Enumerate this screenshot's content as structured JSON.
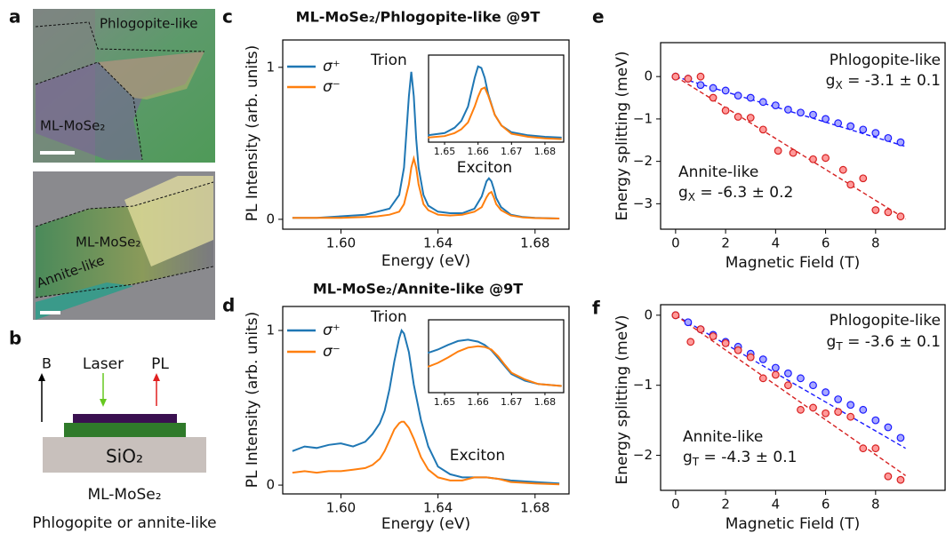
{
  "figure": {
    "panel_labels": [
      "a",
      "b",
      "c",
      "d",
      "e",
      "f"
    ],
    "image_top": {
      "substrate": "Phlogopite-like",
      "flake": "ML-MoSe₂"
    },
    "image_bottom": {
      "flake": "ML-MoSe₂",
      "substrate": "Annite-like"
    },
    "schematic": {
      "field": "B",
      "laser": "Laser",
      "pl": "PL",
      "substrate": "SiO₂",
      "flake": "ML-MoSe₂",
      "layer": "Phlogopite or annite-like"
    }
  },
  "chart_data": [
    {
      "type": "line",
      "title": "ML-MoSe₂/Phlogopite-like @9T",
      "xlabel": "Energy (eV)",
      "ylabel": "PL Intensity (arb. units)",
      "xlim": [
        1.576,
        1.694
      ],
      "ylim": [
        -0.065,
        1.18
      ],
      "xticks": [
        {
          "value": 1.6,
          "label": "1.60"
        },
        1.64,
        1.68
      ],
      "yticks": [
        0,
        1
      ],
      "x": [
        1.58,
        1.59,
        1.6,
        1.61,
        1.615,
        1.62,
        1.624,
        1.626,
        1.628,
        1.629,
        1.63,
        1.631,
        1.632,
        1.634,
        1.636,
        1.64,
        1.645,
        1.65,
        1.655,
        1.658,
        1.66,
        1.661,
        1.662,
        1.663,
        1.664,
        1.666,
        1.67,
        1.675,
        1.68,
        1.69
      ],
      "series": [
        {
          "name": "σ⁺",
          "color": "#1f77b4",
          "values": [
            0.01,
            0.01,
            0.02,
            0.03,
            0.05,
            0.07,
            0.16,
            0.34,
            0.81,
            0.97,
            0.81,
            0.53,
            0.34,
            0.16,
            0.09,
            0.05,
            0.04,
            0.04,
            0.07,
            0.15,
            0.25,
            0.27,
            0.25,
            0.2,
            0.14,
            0.08,
            0.03,
            0.015,
            0.01,
            0.005
          ]
        },
        {
          "name": "σ⁻",
          "color": "#ff7f0e",
          "values": [
            0.01,
            0.01,
            0.01,
            0.015,
            0.02,
            0.03,
            0.05,
            0.1,
            0.23,
            0.34,
            0.4,
            0.34,
            0.23,
            0.1,
            0.06,
            0.03,
            0.025,
            0.03,
            0.05,
            0.08,
            0.145,
            0.17,
            0.18,
            0.145,
            0.1,
            0.06,
            0.025,
            0.012,
            0.008,
            0.005
          ]
        }
      ],
      "annotations": [
        {
          "text": "Trion"
        },
        {
          "text": "Exciton"
        }
      ],
      "inset": {
        "xlim": [
          1.6452,
          1.6856
        ],
        "ylim": [
          0,
          1.15
        ],
        "xticks": [
          1.65,
          1.66,
          1.67,
          1.68
        ],
        "x": [
          1.645,
          1.65,
          1.653,
          1.655,
          1.657,
          1.659,
          1.66,
          1.661,
          1.662,
          1.663,
          1.665,
          1.667,
          1.67,
          1.675,
          1.68,
          1.685
        ],
        "series": [
          {
            "color": "#1f77b4",
            "values": [
              0.09,
              0.12,
              0.19,
              0.28,
              0.47,
              0.85,
              1.0,
              0.98,
              0.85,
              0.64,
              0.36,
              0.22,
              0.13,
              0.09,
              0.07,
              0.06
            ]
          },
          {
            "color": "#ff7f0e",
            "values": [
              0.06,
              0.08,
              0.12,
              0.17,
              0.26,
              0.47,
              0.6,
              0.7,
              0.72,
              0.62,
              0.36,
              0.22,
              0.11,
              0.07,
              0.05,
              0.04
            ]
          }
        ]
      }
    },
    {
      "type": "line",
      "title": "ML-MoSe₂/Annite-like @9T",
      "xlabel": "Energy (eV)",
      "ylabel": "PL Intensity (arb. units)",
      "xlim": [
        1.576,
        1.694
      ],
      "ylim": [
        -0.057,
        1.155
      ],
      "xticks": [
        {
          "value": 1.6,
          "label": "1.60"
        },
        1.64,
        1.68
      ],
      "yticks": [
        0,
        1
      ],
      "x": [
        1.58,
        1.585,
        1.59,
        1.595,
        1.6,
        1.605,
        1.61,
        1.613,
        1.616,
        1.618,
        1.62,
        1.622,
        1.624,
        1.625,
        1.626,
        1.628,
        1.63,
        1.633,
        1.636,
        1.64,
        1.645,
        1.65,
        1.655,
        1.66,
        1.665,
        1.67,
        1.68,
        1.69
      ],
      "series": [
        {
          "name": "σ⁺",
          "color": "#1f77b4",
          "values": [
            0.22,
            0.25,
            0.24,
            0.26,
            0.27,
            0.25,
            0.28,
            0.33,
            0.4,
            0.48,
            0.62,
            0.8,
            0.95,
            1.0,
            0.98,
            0.86,
            0.65,
            0.42,
            0.25,
            0.12,
            0.07,
            0.05,
            0.05,
            0.05,
            0.04,
            0.03,
            0.02,
            0.01
          ]
        },
        {
          "name": "σ⁻",
          "color": "#ff7f0e",
          "values": [
            0.08,
            0.09,
            0.08,
            0.09,
            0.09,
            0.1,
            0.11,
            0.13,
            0.17,
            0.22,
            0.29,
            0.36,
            0.4,
            0.41,
            0.41,
            0.37,
            0.3,
            0.18,
            0.1,
            0.05,
            0.03,
            0.03,
            0.05,
            0.05,
            0.04,
            0.02,
            0.01,
            0.005
          ]
        }
      ],
      "annotations": [
        {
          "text": "Trion"
        },
        {
          "text": "Exciton"
        }
      ],
      "inset": {
        "xlim": [
          1.6452,
          1.6856
        ],
        "ylim": [
          0,
          1.1
        ],
        "xticks": [
          1.65,
          1.66,
          1.67,
          1.68
        ],
        "x": [
          1.645,
          1.648,
          1.651,
          1.654,
          1.657,
          1.66,
          1.662,
          1.664,
          1.666,
          1.668,
          1.67,
          1.674,
          1.678,
          1.685
        ],
        "series": [
          {
            "color": "#1f77b4",
            "values": [
              0.6,
              0.65,
              0.72,
              0.78,
              0.8,
              0.77,
              0.72,
              0.64,
              0.52,
              0.4,
              0.28,
              0.18,
              0.13,
              0.1
            ]
          },
          {
            "color": "#ff7f0e",
            "values": [
              0.39,
              0.45,
              0.53,
              0.62,
              0.68,
              0.7,
              0.69,
              0.65,
              0.55,
              0.42,
              0.3,
              0.2,
              0.13,
              0.1
            ]
          }
        ]
      }
    },
    {
      "type": "scatter",
      "xlabel": "Magnetic Field (T)",
      "ylabel": "Energy splitting (meV)",
      "xlim": [
        -0.6,
        10.78
      ],
      "ylim": [
        -3.6,
        0.8
      ],
      "xticks": [
        0,
        2,
        4,
        6,
        8
      ],
      "yticks": [
        0,
        {
          "value": -1,
          "label": "−1"
        },
        {
          "value": -2,
          "label": "−2"
        },
        {
          "value": -3,
          "label": "−3"
        }
      ],
      "series": [
        {
          "color": "#1a1aff",
          "fill": "#a8a8ff",
          "x": [
            0,
            0.5,
            1,
            1.5,
            2,
            2.5,
            3,
            3.5,
            4,
            4.5,
            5,
            5.5,
            6,
            6.5,
            7,
            7.5,
            8,
            8.5,
            9
          ],
          "values": [
            0,
            -0.05,
            -0.2,
            -0.27,
            -0.33,
            -0.45,
            -0.5,
            -0.6,
            -0.68,
            -0.78,
            -0.85,
            -0.9,
            -1.0,
            -1.1,
            -1.17,
            -1.25,
            -1.33,
            -1.45,
            -1.55
          ]
        },
        {
          "color": "#d62020",
          "fill": "#ff9a9a",
          "x": [
            0,
            0.5,
            1,
            1.5,
            2,
            2.5,
            3,
            3.5,
            4.1,
            4.7,
            5.5,
            6,
            6.7,
            7,
            7.5,
            8,
            8.5,
            9
          ],
          "values": [
            0,
            -0.05,
            0,
            -0.5,
            -0.8,
            -0.95,
            -0.97,
            -1.25,
            -1.75,
            -1.8,
            -1.95,
            -1.92,
            -2.2,
            -2.55,
            -2.4,
            -3.15,
            -3.2,
            -3.3
          ]
        }
      ],
      "fits": [
        {
          "color": "#1a1aff",
          "x": [
            0,
            9.2
          ],
          "values": [
            0,
            -1.65
          ]
        },
        {
          "color": "#d62020",
          "x": [
            0,
            9.2
          ],
          "values": [
            0,
            -3.36
          ]
        }
      ],
      "annotations": [
        {
          "text": "Phlogopite-like",
          "color": "#1a1aff"
        },
        {
          "text": "g",
          "sub": "X",
          "tail": " = -3.1 ± 0.1",
          "color": "#1a1aff"
        },
        {
          "text": "Annite-like",
          "color": "#c41a1a"
        },
        {
          "text": "g",
          "sub": "X",
          "tail": " = -6.3 ± 0.2",
          "color": "#c41a1a"
        }
      ]
    },
    {
      "type": "scatter",
      "xlabel": "Magnetic Field (T)",
      "ylabel": "Energy splitting (meV)",
      "xlim": [
        -0.6,
        10.78
      ],
      "ylim": [
        -2.5,
        0.15
      ],
      "xticks": [
        0,
        2,
        4,
        6,
        8
      ],
      "yticks": [
        0,
        {
          "value": -1,
          "label": "−1"
        },
        {
          "value": -2,
          "label": "−2"
        }
      ],
      "series": [
        {
          "color": "#1a1aff",
          "fill": "#a8a8ff",
          "x": [
            0,
            0.5,
            1,
            1.5,
            2,
            2.5,
            3,
            3.5,
            4,
            4.5,
            5,
            5.5,
            6,
            6.5,
            7,
            7.5,
            8,
            8.5,
            9
          ],
          "values": [
            0,
            -0.1,
            -0.2,
            -0.28,
            -0.38,
            -0.45,
            -0.55,
            -0.63,
            -0.75,
            -0.83,
            -0.9,
            -1.0,
            -1.1,
            -1.2,
            -1.28,
            -1.35,
            -1.5,
            -1.6,
            -1.75
          ]
        },
        {
          "color": "#d62020",
          "fill": "#ff9a9a",
          "x": [
            0,
            0.6,
            1,
            1.5,
            2,
            2.5,
            3,
            3.5,
            4,
            4.5,
            5,
            5.5,
            6,
            6.5,
            7,
            7.5,
            8,
            8.5,
            9
          ],
          "values": [
            0,
            -0.38,
            -0.2,
            -0.3,
            -0.4,
            -0.5,
            -0.6,
            -0.9,
            -0.85,
            -1.0,
            -1.35,
            -1.32,
            -1.4,
            -1.38,
            -1.45,
            -1.9,
            -1.9,
            -2.3,
            -2.35
          ]
        }
      ],
      "fits": [
        {
          "color": "#1a1aff",
          "x": [
            0,
            9.2
          ],
          "values": [
            0,
            -1.9
          ]
        },
        {
          "color": "#d62020",
          "x": [
            0,
            9.2
          ],
          "values": [
            0,
            -2.29
          ]
        }
      ],
      "annotations": [
        {
          "text": "Phlogopite-like",
          "color": "#1a1aff"
        },
        {
          "text": "g",
          "sub": "T",
          "tail": " = -3.6 ± 0.1",
          "color": "#1a1aff"
        },
        {
          "text": "Annite-like",
          "color": "#c41a1a"
        },
        {
          "text": "g",
          "sub": "T",
          "tail": " = -4.3 ± 0.1",
          "color": "#c41a1a"
        }
      ]
    }
  ]
}
